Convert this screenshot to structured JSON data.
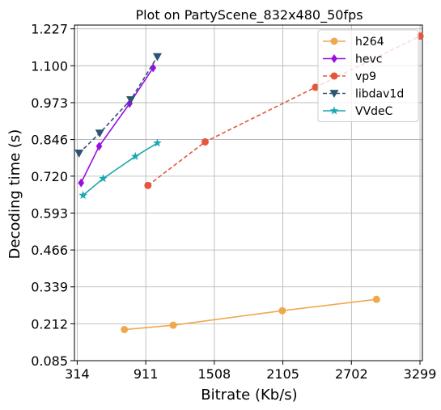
{
  "chart_data": {
    "type": "line",
    "title": "Plot on PartyScene_832x480_50fps",
    "xlabel": "Bitrate (Kb/s)",
    "ylabel": "Decoding time (s)",
    "xlim": [
      290,
      3320
    ],
    "ylim": [
      0.085,
      1.24
    ],
    "xticks": [
      314,
      911,
      1508,
      2105,
      2702,
      3299
    ],
    "xtick_labels": [
      "314",
      "911",
      "1508",
      "2105",
      "2702",
      "3299"
    ],
    "yticks": [
      0.085,
      0.212,
      0.339,
      0.466,
      0.593,
      0.72,
      0.846,
      0.973,
      1.1,
      1.227
    ],
    "ytick_labels": [
      "0.085",
      "0.212",
      "0.339",
      "0.466",
      "0.593",
      "0.720",
      "0.846",
      "0.973",
      "1.100",
      "1.227"
    ],
    "grid": true,
    "legend_position": "top-right",
    "series": [
      {
        "name": "h264",
        "color": "#f0a84c",
        "marker": "circle",
        "dash": "solid",
        "x": [
          725,
          1150,
          2100,
          2920
        ],
        "y": [
          0.192,
          0.207,
          0.257,
          0.296
        ]
      },
      {
        "name": "hevc",
        "color": "#9a0ee0",
        "marker": "diamond",
        "dash": "solid",
        "x": [
          348,
          505,
          770,
          975
        ],
        "y": [
          0.697,
          0.823,
          0.97,
          1.093
        ]
      },
      {
        "name": "vp9",
        "color": "#e4573d",
        "marker": "circle",
        "dash": "dashed",
        "x": [
          930,
          1428,
          2390,
          3300
        ],
        "y": [
          0.688,
          0.838,
          1.026,
          1.202
        ]
      },
      {
        "name": "libdav1d",
        "color": "#2d5573",
        "marker": "triangle-down",
        "dash": "dashed",
        "x": [
          330,
          510,
          780,
          1012
        ],
        "y": [
          0.799,
          0.868,
          0.983,
          1.131
        ]
      },
      {
        "name": "VVdeC",
        "color": "#1aa8b0",
        "marker": "star",
        "dash": "solid",
        "x": [
          365,
          540,
          820,
          1012
        ],
        "y": [
          0.654,
          0.712,
          0.788,
          0.834
        ]
      }
    ]
  }
}
